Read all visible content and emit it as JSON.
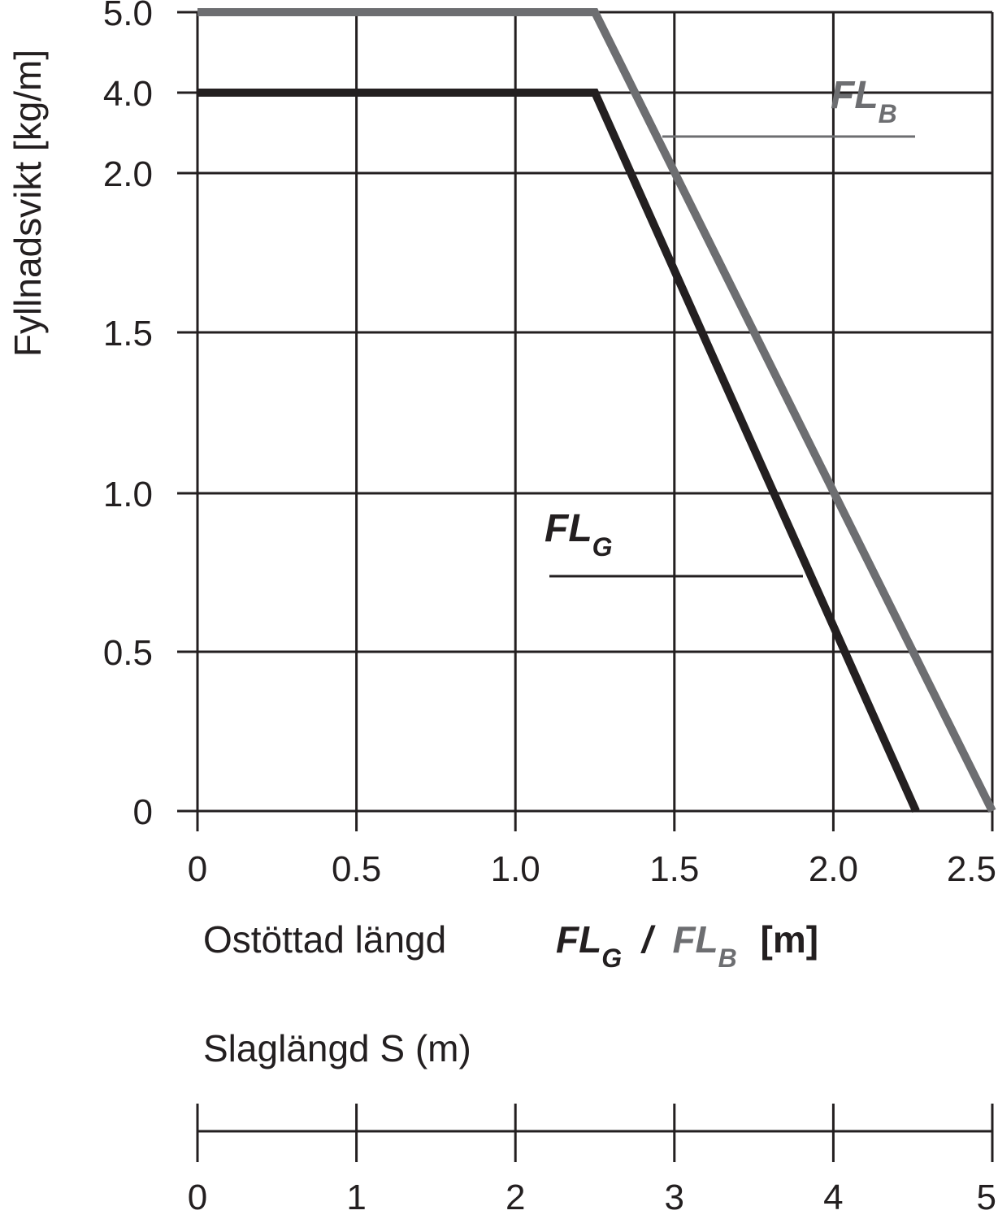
{
  "chart_data": {
    "type": "line",
    "ylabel": "Fyllnadsvikt [kg/m]",
    "xlabel": {
      "prefix": "Ostöttad längd",
      "g_main": "FL",
      "g_sub": "G",
      "separator": "/",
      "b_main": "FL",
      "b_sub": "B",
      "unit": "[m]"
    },
    "y_tick_labels": [
      "0",
      "0.5",
      "1.0",
      "1.5",
      "2.0",
      "4.0",
      "5.0"
    ],
    "x_tick_labels": [
      "0",
      "0.5",
      "1.0",
      "1.5",
      "2.0",
      "2.5"
    ],
    "x_ticks": [
      0,
      0.5,
      1.0,
      1.5,
      2.0,
      2.5
    ],
    "xlim": [
      0,
      2.5
    ],
    "y_scale_note": "non-linear: ticks 0,0.5,1.0,1.5,2.0 evenly spaced, then 4.0 and 5.0 at half spacing",
    "grid": true,
    "series": [
      {
        "name_main": "FL",
        "name_sub": "B",
        "color": "#6d6e71",
        "points": [
          [
            0,
            5.0
          ],
          [
            1.25,
            5.0
          ],
          [
            2.5,
            0
          ]
        ]
      },
      {
        "name_main": "FL",
        "name_sub": "G",
        "color": "#231f20",
        "points": [
          [
            0,
            4.0
          ],
          [
            1.25,
            4.0
          ],
          [
            2.26,
            0
          ]
        ]
      }
    ],
    "secondary_axis": {
      "label": "Slaglängd S (m)",
      "tick_labels": [
        "0",
        "1",
        "2",
        "3",
        "4",
        "5"
      ],
      "ticks": [
        0,
        1,
        2,
        3,
        4,
        5
      ]
    }
  },
  "colors": {
    "ink": "#231f20",
    "gray": "#6d6e71"
  }
}
